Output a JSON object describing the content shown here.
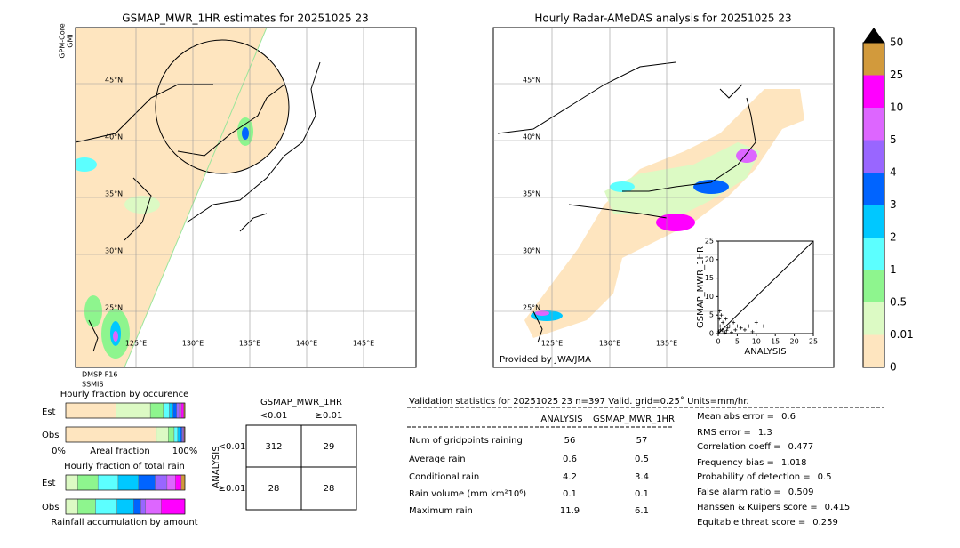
{
  "left_map": {
    "title": "GSMAP_MWR_1HR estimates for 20251025 23",
    "sensor_top": [
      "GPM-Core",
      "GMI"
    ],
    "sensor_bottom": [
      "DMSP-F16",
      "SSMIS"
    ],
    "lat_labels": [
      "45°N",
      "40°N",
      "35°N",
      "30°N",
      "25°N"
    ],
    "lon_labels": [
      "125°E",
      "130°E",
      "135°E",
      "140°E",
      "145°E"
    ]
  },
  "right_map": {
    "title": "Hourly Radar-AMeDAS analysis for 20251025 23",
    "credit": "Provided by JWA/JMA",
    "lat_labels": [
      "45°N",
      "40°N",
      "35°N",
      "30°N",
      "25°N"
    ],
    "lon_labels": [
      "125°E",
      "130°E",
      "135°E"
    ]
  },
  "colorbar": {
    "labels": [
      "0",
      "0.01",
      "0.5",
      "1",
      "2",
      "3",
      "4",
      "5",
      "10",
      "25",
      "50"
    ],
    "colors": [
      "#fee5bf",
      "#dcfac4",
      "#8ef58e",
      "#5cffff",
      "#00c8ff",
      "#0064ff",
      "#9966ff",
      "#dd66ff",
      "#ff00ff",
      "#d29a3c"
    ],
    "extend_color": "#000000"
  },
  "chart_data": {
    "type": "scatter",
    "xlabel": "ANALYSIS",
    "ylabel": "GSMAP_MWR_1HR",
    "xlim": [
      0,
      25
    ],
    "ylim": [
      0,
      25
    ],
    "xticks": [
      0,
      5,
      10,
      15,
      20,
      25
    ],
    "yticks": [
      0,
      5,
      10,
      15,
      20,
      25
    ],
    "color": "#000000",
    "x": [
      0.2,
      0.5,
      0.8,
      1,
      1.2,
      1.5,
      2,
      2.5,
      3,
      3.5,
      4,
      4.5,
      5,
      6,
      7,
      8,
      9,
      10,
      11.9,
      0.3,
      0.6,
      1.8,
      2.2,
      0.4
    ],
    "y": [
      0.5,
      2,
      5,
      1,
      3,
      0.5,
      4,
      1.5,
      2,
      0.3,
      3,
      1,
      2,
      1.5,
      1,
      2,
      0.5,
      3,
      2,
      4,
      1,
      0.2,
      0.8,
      6.1
    ]
  },
  "occurrence": {
    "title": "Hourly fraction by occurence",
    "rows": [
      "Est",
      "Obs"
    ],
    "axis_left": "0%",
    "axis_mid": "Areal fraction",
    "axis_right": "100%",
    "est": [
      42,
      29,
      11,
      5,
      3,
      3,
      2,
      2,
      2,
      1
    ],
    "obs": [
      76,
      10,
      5,
      3,
      2,
      1.5,
      1,
      0.5,
      0.5,
      0.5
    ]
  },
  "total_rain": {
    "title": "Hourly fraction of total rain",
    "rows": [
      "Est",
      "Obs"
    ],
    "footer": "Rainfall accumulation by amount",
    "est": [
      0,
      10,
      17,
      17,
      17,
      14,
      10,
      7,
      5,
      3
    ],
    "obs": [
      0,
      10,
      15,
      18,
      14,
      6,
      4,
      13,
      20,
      0
    ]
  },
  "contingency": {
    "title": "GSMAP_MWR_1HR",
    "col_labels": [
      "<0.01",
      "≥0.01"
    ],
    "row_title": "ANALYSIS",
    "row_labels": [
      "<0.01",
      "≥0.01"
    ],
    "cells": [
      [
        312,
        29
      ],
      [
        28,
        28
      ]
    ]
  },
  "validation": {
    "title": "Validation statistics for 20251025 23  n=397 Valid. grid=0.25˚ Units=mm/hr.",
    "columns": [
      "ANALYSIS",
      "GSMAP_MWR_1HR"
    ],
    "rows": [
      [
        "Num of gridpoints raining",
        56,
        57
      ],
      [
        "Average rain",
        0.6,
        0.5
      ],
      [
        "Conditional rain",
        4.2,
        3.4
      ],
      [
        "Rain volume (mm km²10⁶)",
        0.1,
        0.1
      ],
      [
        "Maximum rain",
        11.9,
        6.1
      ]
    ],
    "scores": [
      [
        "Mean abs error =",
        0.6
      ],
      [
        "RMS error =",
        1.3
      ],
      [
        "Correlation coeff =",
        0.477
      ],
      [
        "Frequency bias =",
        1.018
      ],
      [
        "Probability of detection =",
        0.5
      ],
      [
        "False alarm ratio =",
        0.509
      ],
      [
        "Hanssen & Kuipers score =",
        0.415
      ],
      [
        "Equitable threat score =",
        0.259
      ]
    ]
  }
}
